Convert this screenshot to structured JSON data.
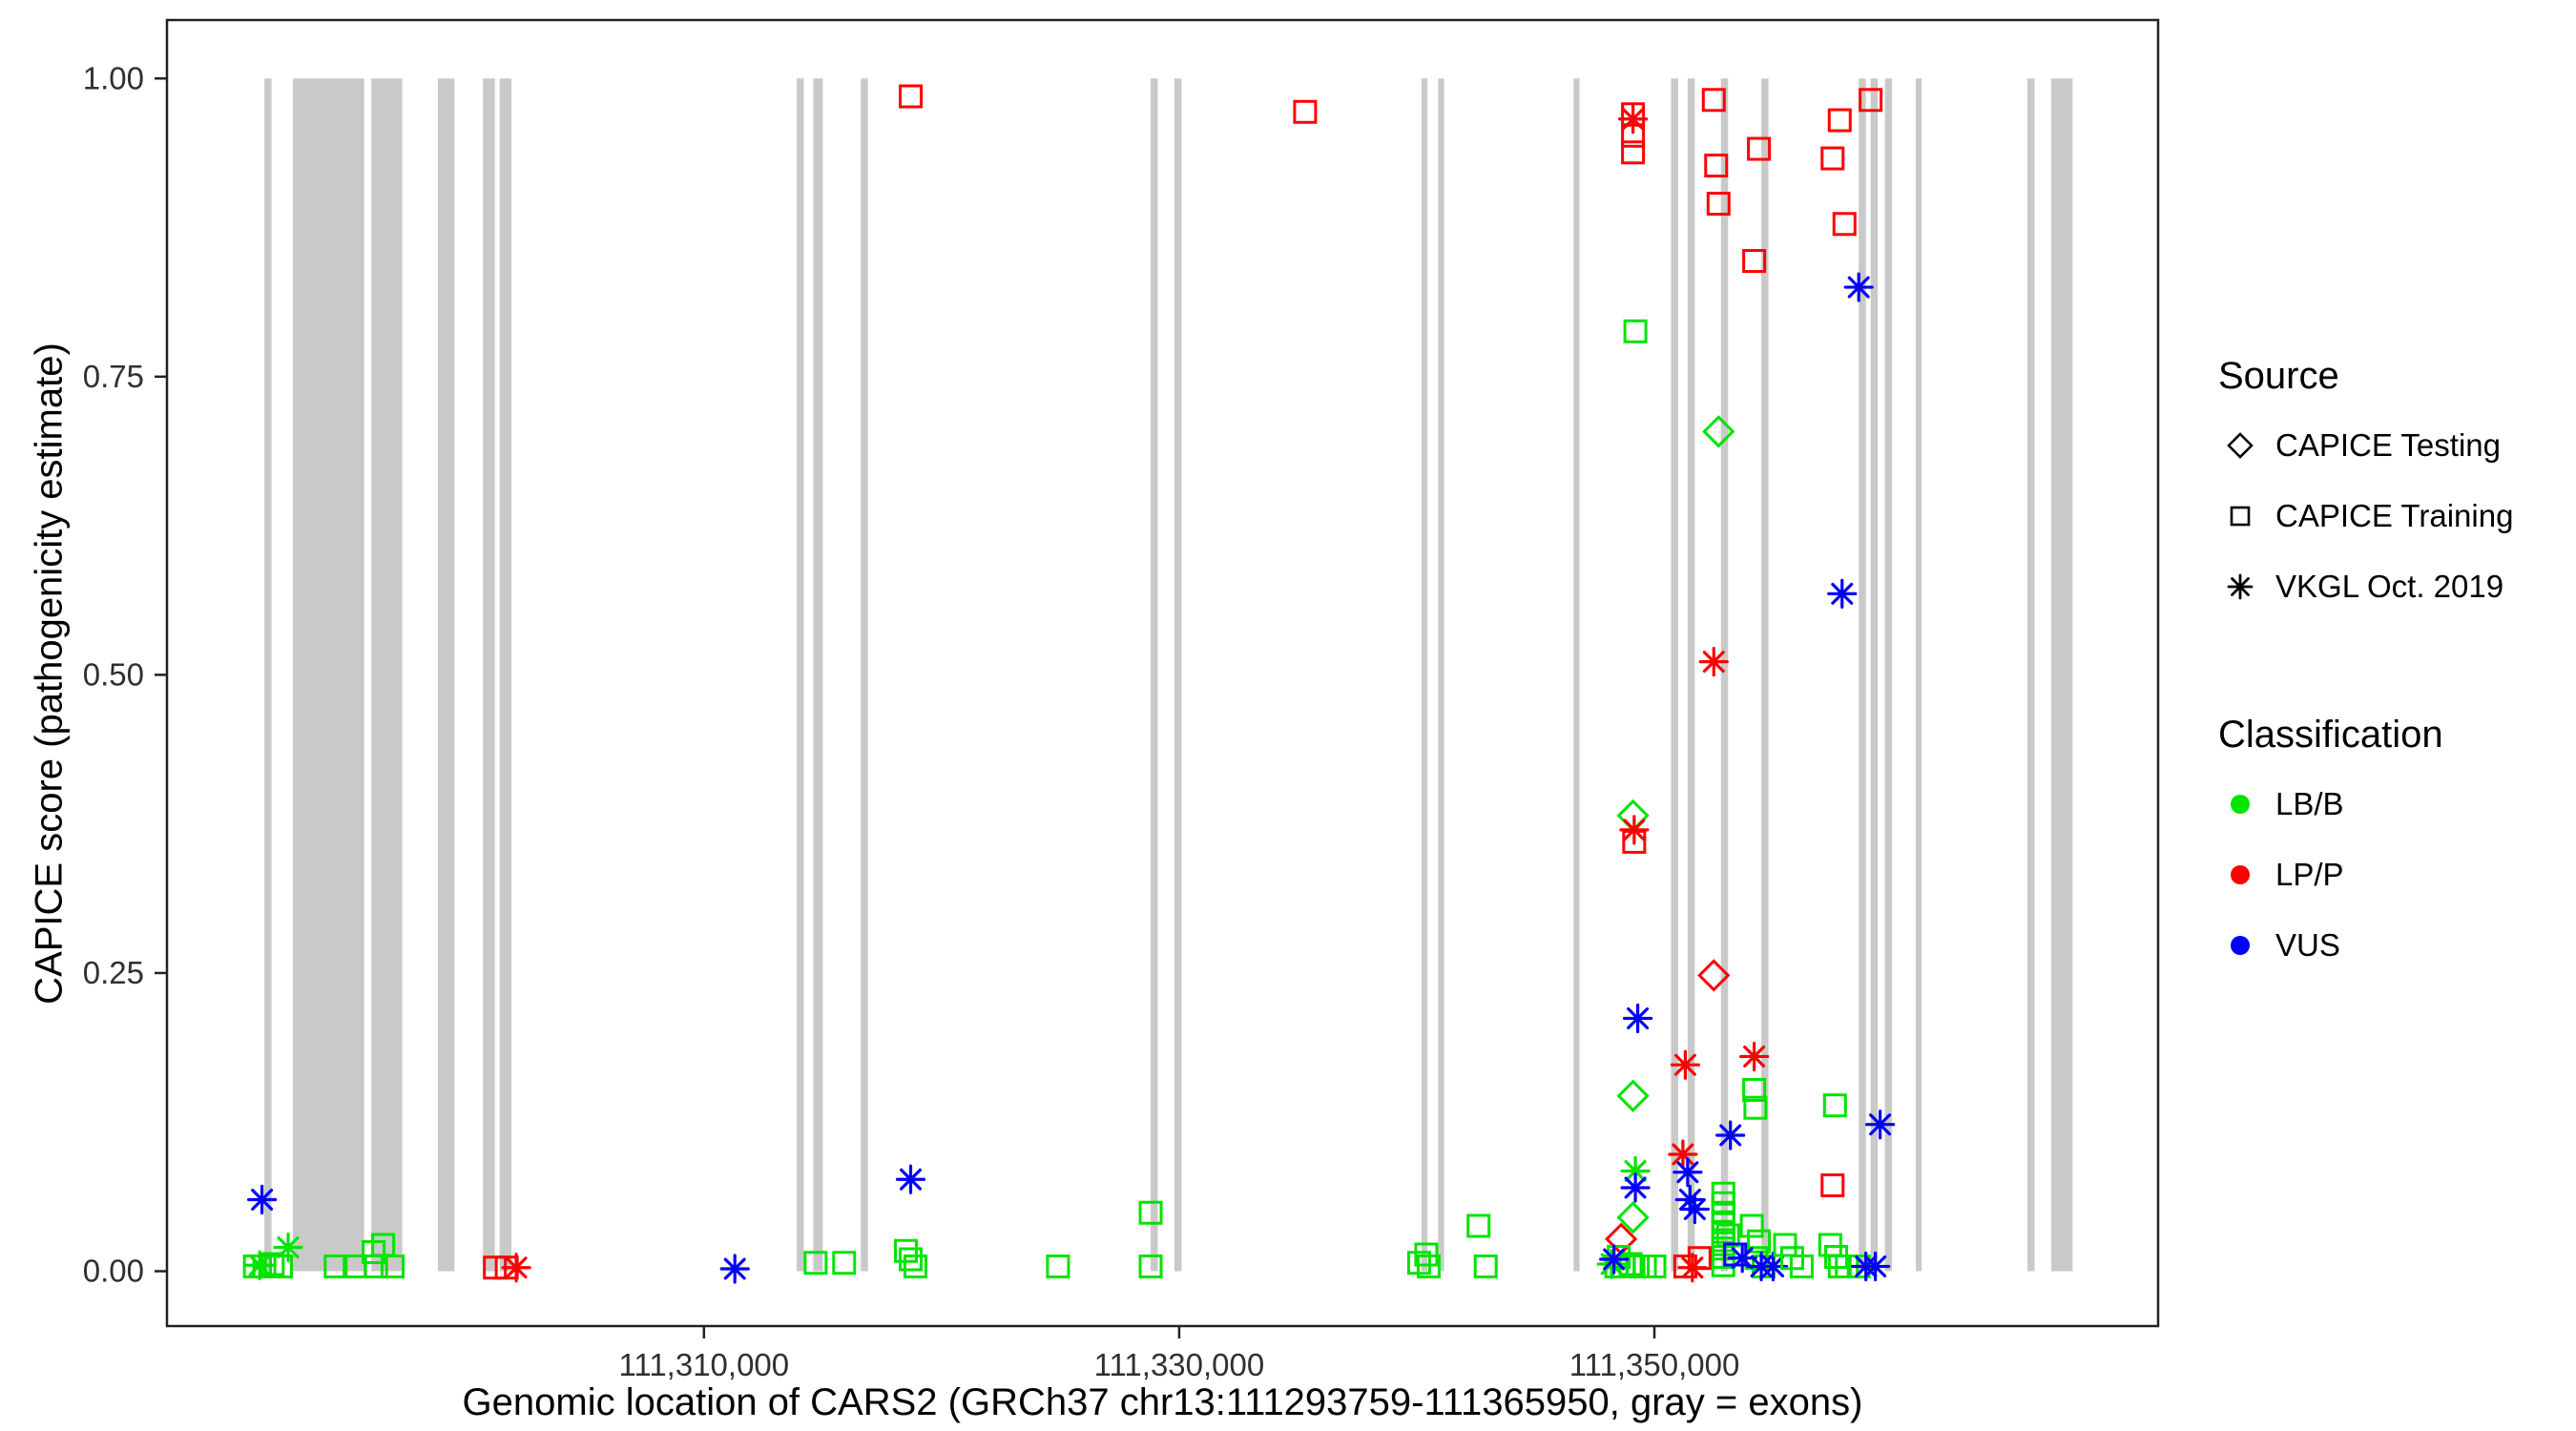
{
  "legend": {
    "source_title": "Source",
    "source_items": [
      {
        "label": "CAPICE Testing",
        "shape": "diamond"
      },
      {
        "label": "CAPICE Training",
        "shape": "square"
      },
      {
        "label": "VKGL Oct. 2019",
        "shape": "asterisk"
      }
    ],
    "classification_title": "Classification",
    "classification_items": [
      {
        "label": "LB/B",
        "color": "#00E400"
      },
      {
        "label": "LP/P",
        "color": "#FF0000"
      },
      {
        "label": "VUS",
        "color": "#0000FF"
      }
    ]
  },
  "chart_data": {
    "type": "scatter",
    "title": "",
    "xlabel": "Genomic location of CARS2 (GRCh37 chr13:111293759-111365950, gray = exons)",
    "ylabel": "CAPICE score (pathogenicity estimate)",
    "xlim": [
      111287400,
      111371200
    ],
    "ylim": [
      -0.046,
      1.049
    ],
    "grid": "off",
    "legend_position": "right",
    "x_ticks": [
      {
        "value": 111310000,
        "label": "111,310,000"
      },
      {
        "value": 111330000,
        "label": "111,330,000"
      },
      {
        "value": 111350000,
        "label": "111,350,000"
      }
    ],
    "y_ticks": [
      {
        "value": 0.0,
        "label": "0.00"
      },
      {
        "value": 0.25,
        "label": "0.25"
      },
      {
        "value": 0.5,
        "label": "0.50"
      },
      {
        "value": 0.75,
        "label": "0.75"
      },
      {
        "value": 1.0,
        "label": "1.00"
      }
    ],
    "exon_color": "#C9C9C9",
    "exon_y_range": [
      0,
      1
    ],
    "exons": [
      [
        111291500,
        111291800
      ],
      [
        111292700,
        111295700
      ],
      [
        111296000,
        111297300
      ],
      [
        111298800,
        111299500
      ],
      [
        111300700,
        111301200
      ],
      [
        111301400,
        111301900
      ],
      [
        111313900,
        111314200
      ],
      [
        111314600,
        111315000
      ],
      [
        111316600,
        111316900
      ],
      [
        111328800,
        111329100
      ],
      [
        111329800,
        111330100
      ],
      [
        111340200,
        111340450
      ],
      [
        111340900,
        111341150
      ],
      [
        111346600,
        111346850
      ],
      [
        111350700,
        111351000
      ],
      [
        111351400,
        111351700
      ],
      [
        111352800,
        111353100
      ],
      [
        111354500,
        111354800
      ],
      [
        111358600,
        111358900
      ],
      [
        111359100,
        111359400
      ],
      [
        111359700,
        111360000
      ],
      [
        111361000,
        111361250
      ],
      [
        111365700,
        111366000
      ],
      [
        111366700,
        111367600
      ]
    ],
    "source_codes": {
      "testing": "CAPICE Testing",
      "training": "CAPICE Training",
      "vkgl": "VKGL Oct. 2019"
    },
    "class_codes": {
      "LB": "LB/B",
      "LP": "LP/P",
      "VUS": "VUS"
    },
    "shape_by_source": {
      "testing": "diamond",
      "training": "square",
      "vkgl": "asterisk"
    },
    "color_by_classification": {
      "LB": "#00E400",
      "LP": "#FF0000",
      "VUS": "#0000FF"
    },
    "points_format": [
      "genomic_position",
      "capice_score",
      "source",
      "classification"
    ],
    "points": [
      [
        111291100,
        0.004,
        "training",
        "LB"
      ],
      [
        111291500,
        0.004,
        "training",
        "LB"
      ],
      [
        111291850,
        0.006,
        "training",
        "LB"
      ],
      [
        111292200,
        0.004,
        "training",
        "LB"
      ],
      [
        111291300,
        0.005,
        "vkgl",
        "LB"
      ],
      [
        111291400,
        0.06,
        "vkgl",
        "VUS"
      ],
      [
        111292500,
        0.02,
        "vkgl",
        "LB"
      ],
      [
        111294500,
        0.004,
        "training",
        "LB"
      ],
      [
        111295300,
        0.004,
        "training",
        "LB"
      ],
      [
        111296100,
        0.016,
        "training",
        "LB"
      ],
      [
        111296500,
        0.022,
        "training",
        "LB"
      ],
      [
        111296200,
        0.004,
        "training",
        "LB"
      ],
      [
        111296900,
        0.004,
        "training",
        "LB"
      ],
      [
        111301200,
        0.003,
        "training",
        "LP"
      ],
      [
        111301700,
        0.003,
        "training",
        "LP"
      ],
      [
        111302100,
        0.003,
        "vkgl",
        "LP"
      ],
      [
        111311300,
        0.002,
        "vkgl",
        "VUS"
      ],
      [
        111314700,
        0.007,
        "training",
        "LB"
      ],
      [
        111315900,
        0.007,
        "training",
        "LB"
      ],
      [
        111318500,
        0.017,
        "training",
        "LB"
      ],
      [
        111318700,
        0.01,
        "training",
        "LB"
      ],
      [
        111318900,
        0.004,
        "training",
        "LB"
      ],
      [
        111318700,
        0.077,
        "vkgl",
        "VUS"
      ],
      [
        111318700,
        0.985,
        "training",
        "LP"
      ],
      [
        111324900,
        0.004,
        "training",
        "LB"
      ],
      [
        111328800,
        0.049,
        "training",
        "LB"
      ],
      [
        111328800,
        0.004,
        "training",
        "LB"
      ],
      [
        111335300,
        0.972,
        "training",
        "LP"
      ],
      [
        111340100,
        0.007,
        "training",
        "LB"
      ],
      [
        111340400,
        0.014,
        "training",
        "LB"
      ],
      [
        111340500,
        0.004,
        "training",
        "LB"
      ],
      [
        111342600,
        0.038,
        "training",
        "LB"
      ],
      [
        111342900,
        0.004,
        "training",
        "LB"
      ],
      [
        111349100,
        0.97,
        "training",
        "LP"
      ],
      [
        111349100,
        0.966,
        "vkgl",
        "LP"
      ],
      [
        111349100,
        0.952,
        "training",
        "LP"
      ],
      [
        111349100,
        0.938,
        "training",
        "LP"
      ],
      [
        111352500,
        0.982,
        "training",
        "LP"
      ],
      [
        111352600,
        0.927,
        "training",
        "LP"
      ],
      [
        111352700,
        0.895,
        "training",
        "LP"
      ],
      [
        111354400,
        0.941,
        "training",
        "LP"
      ],
      [
        111354200,
        0.847,
        "training",
        "LP"
      ],
      [
        111357500,
        0.933,
        "training",
        "LP"
      ],
      [
        111357800,
        0.965,
        "training",
        "LP"
      ],
      [
        111358000,
        0.878,
        "training",
        "LP"
      ],
      [
        111359100,
        0.982,
        "training",
        "LP"
      ],
      [
        111358600,
        0.825,
        "vkgl",
        "VUS"
      ],
      [
        111357900,
        0.568,
        "vkgl",
        "VUS"
      ],
      [
        111349200,
        0.788,
        "training",
        "LB"
      ],
      [
        111352700,
        0.704,
        "testing",
        "LB"
      ],
      [
        111352500,
        0.511,
        "vkgl",
        "LP"
      ],
      [
        111349100,
        0.382,
        "testing",
        "LB"
      ],
      [
        111349150,
        0.37,
        "vkgl",
        "LP"
      ],
      [
        111349150,
        0.36,
        "training",
        "LP"
      ],
      [
        111352500,
        0.248,
        "testing",
        "LP"
      ],
      [
        111349300,
        0.212,
        "vkgl",
        "VUS"
      ],
      [
        111354200,
        0.18,
        "vkgl",
        "LP"
      ],
      [
        111351300,
        0.173,
        "vkgl",
        "LP"
      ],
      [
        111349100,
        0.147,
        "testing",
        "LB"
      ],
      [
        111354200,
        0.152,
        "training",
        "LB"
      ],
      [
        111354250,
        0.137,
        "training",
        "LB"
      ],
      [
        111357600,
        0.139,
        "training",
        "LB"
      ],
      [
        111359500,
        0.123,
        "vkgl",
        "VUS"
      ],
      [
        111353200,
        0.114,
        "vkgl",
        "VUS"
      ],
      [
        111351200,
        0.098,
        "vkgl",
        "LP"
      ],
      [
        111351400,
        0.083,
        "vkgl",
        "VUS"
      ],
      [
        111349200,
        0.084,
        "vkgl",
        "LB"
      ],
      [
        111349200,
        0.07,
        "vkgl",
        "VUS"
      ],
      [
        111351500,
        0.06,
        "vkgl",
        "VUS"
      ],
      [
        111351700,
        0.052,
        "vkgl",
        "VUS"
      ],
      [
        111357500,
        0.072,
        "training",
        "LP"
      ],
      [
        111349100,
        0.045,
        "testing",
        "LB"
      ],
      [
        111348600,
        0.027,
        "testing",
        "LP"
      ],
      [
        111352900,
        0.065,
        "training",
        "LB"
      ],
      [
        111352900,
        0.057,
        "training",
        "LB"
      ],
      [
        111352900,
        0.049,
        "training",
        "LB"
      ],
      [
        111352900,
        0.041,
        "training",
        "LB"
      ],
      [
        111352900,
        0.033,
        "training",
        "LB"
      ],
      [
        111352900,
        0.026,
        "training",
        "LB"
      ],
      [
        111352900,
        0.019,
        "training",
        "LB"
      ],
      [
        111352900,
        0.012,
        "training",
        "LB"
      ],
      [
        111352900,
        0.005,
        "training",
        "LB"
      ],
      [
        111353100,
        0.03,
        "training",
        "LB"
      ],
      [
        111354100,
        0.038,
        "training",
        "LB"
      ],
      [
        111354400,
        0.025,
        "training",
        "LB"
      ],
      [
        111354300,
        0.011,
        "training",
        "LB"
      ],
      [
        111354600,
        0.004,
        "training",
        "LB"
      ],
      [
        111348400,
        0.004,
        "training",
        "LB"
      ],
      [
        111348700,
        0.004,
        "training",
        "LB"
      ],
      [
        111349000,
        0.006,
        "training",
        "LB"
      ],
      [
        111349300,
        0.004,
        "training",
        "LB"
      ],
      [
        111349600,
        0.004,
        "training",
        "LB"
      ],
      [
        111350000,
        0.004,
        "training",
        "LB"
      ],
      [
        111348500,
        0.012,
        "training",
        "LB"
      ],
      [
        111348200,
        0.006,
        "vkgl",
        "LB"
      ],
      [
        111348300,
        0.01,
        "vkgl",
        "VUS"
      ],
      [
        111351300,
        0.004,
        "training",
        "LP"
      ],
      [
        111351600,
        0.003,
        "vkgl",
        "LP"
      ],
      [
        111351900,
        0.011,
        "training",
        "LP"
      ],
      [
        111353400,
        0.014,
        "training",
        "VUS"
      ],
      [
        111353700,
        0.011,
        "vkgl",
        "VUS"
      ],
      [
        111354500,
        0.004,
        "vkgl",
        "VUS"
      ],
      [
        111355000,
        0.004,
        "vkgl",
        "VUS"
      ],
      [
        111355500,
        0.022,
        "training",
        "LB"
      ],
      [
        111355800,
        0.011,
        "training",
        "LB"
      ],
      [
        111356200,
        0.004,
        "training",
        "LB"
      ],
      [
        111357400,
        0.022,
        "training",
        "LB"
      ],
      [
        111357650,
        0.012,
        "training",
        "LB"
      ],
      [
        111357800,
        0.004,
        "training",
        "LB"
      ],
      [
        111358100,
        0.004,
        "training",
        "LB"
      ],
      [
        111358600,
        0.004,
        "training",
        "LB"
      ],
      [
        111358900,
        0.004,
        "vkgl",
        "VUS"
      ],
      [
        111359300,
        0.004,
        "vkgl",
        "VUS"
      ]
    ]
  }
}
